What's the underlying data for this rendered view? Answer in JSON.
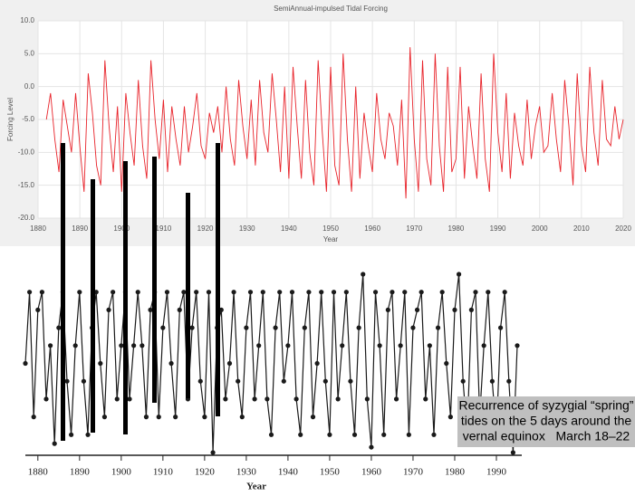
{
  "chart_data": [
    {
      "type": "line",
      "title": "SemiAnnual-impulsed Tidal Forcing",
      "ylabel": "Forcing Level",
      "xlabel": "Year",
      "color": "#e8232a",
      "grid": true,
      "xlim": [
        1880,
        2020
      ],
      "xticks": [
        1880,
        1890,
        1900,
        1910,
        1920,
        1930,
        1940,
        1950,
        1960,
        1970,
        1980,
        1990,
        2000,
        2010,
        2020
      ],
      "ylim": [
        -20,
        10
      ],
      "yticks": [
        {
          "value": 10,
          "label": "10.0"
        },
        {
          "value": 5,
          "label": "5.0"
        },
        {
          "value": 0,
          "label": "0.0"
        },
        {
          "value": -5,
          "label": "-5.0"
        },
        {
          "value": -10,
          "label": "-10.0"
        },
        {
          "value": -15,
          "label": "-15.0"
        },
        {
          "value": -20,
          "label": "-20.0"
        }
      ],
      "x": [
        1882,
        1883,
        1884,
        1885,
        1886,
        1887,
        1888,
        1889,
        1890,
        1891,
        1892,
        1893,
        1894,
        1895,
        1896,
        1897,
        1898,
        1899,
        1900,
        1901,
        1902,
        1903,
        1904,
        1905,
        1906,
        1907,
        1908,
        1909,
        1910,
        1911,
        1912,
        1913,
        1914,
        1915,
        1916,
        1917,
        1918,
        1919,
        1920,
        1921,
        1922,
        1923,
        1924,
        1925,
        1926,
        1927,
        1928,
        1929,
        1930,
        1931,
        1932,
        1933,
        1934,
        1935,
        1936,
        1937,
        1938,
        1939,
        1940,
        1941,
        1942,
        1943,
        1944,
        1945,
        1946,
        1947,
        1948,
        1949,
        1950,
        1951,
        1952,
        1953,
        1954,
        1955,
        1956,
        1957,
        1958,
        1959,
        1960,
        1961,
        1962,
        1963,
        1964,
        1965,
        1966,
        1967,
        1968,
        1969,
        1970,
        1971,
        1972,
        1973,
        1974,
        1975,
        1976,
        1977,
        1978,
        1979,
        1980,
        1981,
        1982,
        1983,
        1984,
        1985,
        1986,
        1987,
        1988,
        1989,
        1990,
        1991,
        1992,
        1993,
        1994,
        1995,
        1996,
        1997,
        1998,
        1999,
        2000,
        2001,
        2002,
        2003,
        2004,
        2005,
        2006,
        2007,
        2008,
        2009,
        2010,
        2011,
        2012,
        2013,
        2014,
        2015,
        2016,
        2017,
        2018,
        2019,
        2020
      ],
      "values": [
        -5,
        -1,
        -8,
        -13,
        -2,
        -6,
        -10,
        -1,
        -9,
        -16,
        2,
        -4,
        -12,
        -15,
        4,
        -6,
        -13,
        -3,
        -16,
        -1,
        -7,
        -12,
        1,
        -9,
        -14,
        4,
        -5,
        -11,
        -2,
        -13,
        -3,
        -8,
        -12,
        -3,
        -10,
        -6,
        -1,
        -9,
        -11,
        -4,
        -7,
        -3,
        -10,
        0,
        -8,
        -12,
        1,
        -6,
        -11,
        -2,
        -12,
        1,
        -7,
        -10,
        2,
        -5,
        -13,
        0,
        -14,
        3,
        -6,
        -14,
        1,
        -10,
        -15,
        4,
        -7,
        -16,
        3,
        -12,
        -15,
        5,
        -8,
        -16,
        0,
        -14,
        -4,
        -9,
        -13,
        -1,
        -8,
        -11,
        -4,
        -6,
        -12,
        -2,
        -17,
        6,
        -8,
        -16,
        4,
        -11,
        -15,
        5,
        -9,
        -16,
        3,
        -13,
        -11,
        3,
        -14,
        -3,
        -9,
        -14,
        2,
        -11,
        -16,
        5,
        -7,
        -13,
        -1,
        -14,
        -4,
        -9,
        -12,
        -2,
        -11,
        -6,
        -3,
        -10,
        -9,
        -1,
        -8,
        -13,
        1,
        -6,
        -15,
        2,
        -9,
        -13,
        3,
        -7,
        -12,
        1,
        -8,
        -9,
        -3,
        -8,
        -5
      ]
    },
    {
      "type": "line",
      "markers": true,
      "color": "#1a1a1a",
      "xlabel": "Year",
      "annotation": [
        "Recurrence of syzygial “spring”",
        "tides on the 5 days around the",
        "vernal equinox   March 18–22"
      ],
      "xlim": [
        1877,
        1995
      ],
      "xticks": [
        1880,
        1890,
        1900,
        1910,
        1920,
        1930,
        1940,
        1950,
        1960,
        1970,
        1980,
        1990
      ],
      "ylim": [
        0,
        10
      ],
      "x": [
        1877,
        1878,
        1879,
        1880,
        1881,
        1882,
        1883,
        1884,
        1885,
        1886,
        1887,
        1888,
        1889,
        1890,
        1891,
        1892,
        1893,
        1894,
        1895,
        1896,
        1897,
        1898,
        1899,
        1900,
        1901,
        1902,
        1903,
        1904,
        1905,
        1906,
        1907,
        1908,
        1909,
        1910,
        1911,
        1912,
        1913,
        1914,
        1915,
        1916,
        1917,
        1918,
        1919,
        1920,
        1921,
        1922,
        1923,
        1924,
        1925,
        1926,
        1927,
        1928,
        1929,
        1930,
        1931,
        1932,
        1933,
        1934,
        1935,
        1936,
        1937,
        1938,
        1939,
        1940,
        1941,
        1942,
        1943,
        1944,
        1945,
        1946,
        1947,
        1948,
        1949,
        1950,
        1951,
        1952,
        1953,
        1954,
        1955,
        1956,
        1957,
        1958,
        1959,
        1960,
        1961,
        1962,
        1963,
        1964,
        1965,
        1966,
        1967,
        1968,
        1969,
        1970,
        1971,
        1972,
        1973,
        1974,
        1975,
        1976,
        1977,
        1978,
        1979,
        1980,
        1981,
        1982,
        1983,
        1984,
        1985,
        1986,
        1987,
        1988,
        1989,
        1990,
        1991,
        1992,
        1993,
        1994,
        1995
      ],
      "values": [
        5,
        9,
        2,
        8,
        9,
        3,
        6,
        0.5,
        7,
        9,
        4,
        1,
        6,
        9,
        4,
        1,
        7,
        9,
        5,
        2,
        8,
        9,
        3,
        6,
        9,
        3,
        6,
        9,
        6,
        2,
        8,
        9,
        2,
        7,
        9,
        5,
        2,
        8,
        9,
        3,
        7,
        9,
        4,
        2,
        9,
        0,
        7,
        8,
        3,
        5,
        9,
        4,
        2,
        7,
        9,
        3,
        6,
        9,
        3,
        1,
        7,
        9,
        4,
        6,
        9,
        3,
        1,
        7,
        9,
        2,
        5,
        9,
        4,
        1,
        9,
        3,
        6,
        9,
        4,
        1,
        7,
        10,
        3,
        0.3,
        9,
        6,
        1,
        8,
        9,
        3,
        6,
        9,
        1,
        7,
        8,
        9,
        3,
        6,
        1,
        7,
        9,
        5,
        2,
        8,
        10,
        4,
        1,
        8,
        9,
        2,
        6,
        9,
        4,
        1,
        7,
        9,
        4,
        0,
        6
      ]
    }
  ]
}
